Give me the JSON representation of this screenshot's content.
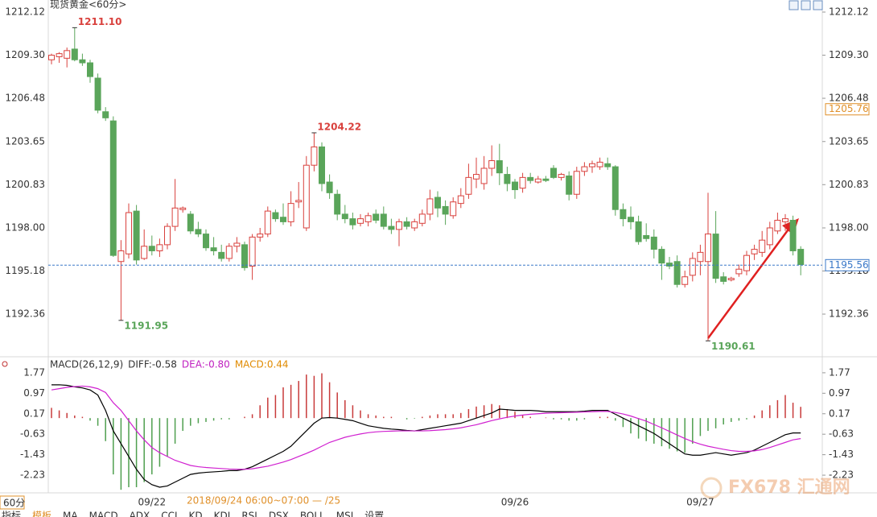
{
  "chart_data": [
    {
      "type": "candlestick",
      "title": "现货黄金<60分>",
      "categories": [
        null,
        null,
        null,
        null,
        null,
        null,
        null,
        null,
        null,
        null,
        null,
        null,
        null,
        "09/22",
        null,
        null,
        null,
        null,
        null,
        null,
        null,
        null,
        null,
        null,
        null,
        null,
        null,
        null,
        null,
        null,
        null,
        null,
        null,
        null,
        null,
        null,
        null,
        null,
        null,
        null,
        null,
        null,
        null,
        null,
        null,
        null,
        null,
        null,
        null,
        null,
        null,
        null,
        null,
        null,
        null,
        null,
        null,
        null,
        null,
        null,
        "09/26",
        null,
        null,
        null,
        null,
        null,
        null,
        null,
        null,
        null,
        null,
        null,
        null,
        null,
        null,
        null,
        null,
        null,
        null,
        null,
        null,
        null,
        null,
        null,
        "09/27",
        null,
        null,
        null,
        null,
        null,
        null,
        null,
        null,
        null,
        null,
        null,
        null,
        null
      ],
      "ohlc": [
        [
          1209.0,
          1209.4,
          1208.7,
          1209.3
        ],
        [
          1209.2,
          1209.5,
          1208.8,
          1209.4
        ],
        [
          1209.1,
          1209.8,
          1208.5,
          1209.6
        ],
        [
          1209.7,
          1211.1,
          1208.9,
          1209.0
        ],
        [
          1209.0,
          1209.4,
          1208.6,
          1208.8
        ],
        [
          1208.8,
          1209.0,
          1207.5,
          1207.9
        ],
        [
          1207.8,
          1208.1,
          1205.5,
          1205.7
        ],
        [
          1205.6,
          1205.9,
          1205.0,
          1205.2
        ],
        [
          1205.0,
          1205.3,
          1196.1,
          1196.2
        ],
        [
          1195.8,
          1197.2,
          1191.95,
          1196.5
        ],
        [
          1196.3,
          1199.6,
          1196.0,
          1199.0
        ],
        [
          1199.1,
          1199.5,
          1195.6,
          1195.9
        ],
        [
          1196.0,
          1197.9,
          1195.9,
          1196.8
        ],
        [
          1196.8,
          1197.5,
          1196.2,
          1196.5
        ],
        [
          1196.5,
          1197.3,
          1196.1,
          1196.9
        ],
        [
          1196.9,
          1198.3,
          1196.6,
          1198.1
        ],
        [
          1198.1,
          1201.2,
          1197.8,
          1199.3
        ],
        [
          1199.2,
          1199.4,
          1199.0,
          1199.3
        ],
        [
          1198.9,
          1199.1,
          1197.6,
          1197.8
        ],
        [
          1197.9,
          1198.4,
          1197.4,
          1197.6
        ],
        [
          1197.6,
          1197.9,
          1196.5,
          1196.7
        ],
        [
          1196.7,
          1197.4,
          1196.2,
          1196.5
        ],
        [
          1196.4,
          1196.9,
          1195.8,
          1196.0
        ],
        [
          1196.0,
          1197.0,
          1195.8,
          1196.8
        ],
        [
          1196.8,
          1197.4,
          1196.4,
          1197.0
        ],
        [
          1196.9,
          1197.1,
          1195.2,
          1195.4
        ],
        [
          1195.5,
          1197.6,
          1194.6,
          1197.4
        ],
        [
          1197.4,
          1198.0,
          1197.1,
          1197.6
        ],
        [
          1197.6,
          1199.4,
          1197.4,
          1199.1
        ],
        [
          1199.0,
          1199.2,
          1198.4,
          1198.6
        ],
        [
          1198.7,
          1199.6,
          1198.2,
          1198.4
        ],
        [
          1198.4,
          1200.4,
          1198.1,
          1199.6
        ],
        [
          1199.7,
          1201.0,
          1199.3,
          1199.8
        ],
        [
          1198.0,
          1202.7,
          1197.8,
          1202.1
        ],
        [
          1202.1,
          1204.22,
          1201.7,
          1203.3
        ],
        [
          1203.3,
          1203.6,
          1200.4,
          1200.9
        ],
        [
          1201.0,
          1201.5,
          1199.9,
          1200.3
        ],
        [
          1200.2,
          1200.5,
          1198.5,
          1198.9
        ],
        [
          1198.9,
          1199.5,
          1198.3,
          1198.6
        ],
        [
          1198.6,
          1199.0,
          1197.9,
          1198.2
        ],
        [
          1198.3,
          1198.9,
          1198.1,
          1198.6
        ],
        [
          1198.4,
          1199.0,
          1198.1,
          1198.8
        ],
        [
          1198.9,
          1199.2,
          1198.3,
          1198.5
        ],
        [
          1198.9,
          1199.4,
          1197.9,
          1198.1
        ],
        [
          1198.1,
          1198.6,
          1197.6,
          1197.9
        ],
        [
          1197.9,
          1198.6,
          1196.8,
          1198.4
        ],
        [
          1198.4,
          1198.7,
          1197.9,
          1198.1
        ],
        [
          1198.0,
          1198.6,
          1197.8,
          1198.4
        ],
        [
          1198.3,
          1199.2,
          1198.1,
          1198.9
        ],
        [
          1198.9,
          1200.5,
          1198.5,
          1199.9
        ],
        [
          1200.0,
          1200.4,
          1198.7,
          1199.3
        ],
        [
          1199.4,
          1199.8,
          1198.2,
          1198.9
        ],
        [
          1198.8,
          1200.0,
          1198.6,
          1199.7
        ],
        [
          1199.6,
          1200.6,
          1199.3,
          1200.1
        ],
        [
          1200.2,
          1202.2,
          1199.9,
          1201.3
        ],
        [
          1201.2,
          1202.6,
          1200.6,
          1201.5
        ],
        [
          1200.9,
          1202.7,
          1200.5,
          1201.9
        ],
        [
          1201.9,
          1203.4,
          1201.4,
          1202.4
        ],
        [
          1202.4,
          1203.5,
          1200.8,
          1201.6
        ],
        [
          1201.5,
          1202.0,
          1200.4,
          1200.9
        ],
        [
          1201.0,
          1201.2,
          1199.9,
          1200.5
        ],
        [
          1200.6,
          1201.6,
          1200.3,
          1201.3
        ],
        [
          1201.3,
          1201.6,
          1200.9,
          1201.1
        ],
        [
          1201.0,
          1201.4,
          1200.9,
          1201.2
        ],
        [
          1201.2,
          1201.4,
          1201.0,
          1201.1
        ],
        [
          1201.9,
          1202.1,
          1201.2,
          1201.3
        ],
        [
          1201.3,
          1201.6,
          1201.1,
          1201.5
        ],
        [
          1201.4,
          1201.7,
          1199.8,
          1200.2
        ],
        [
          1200.2,
          1202.0,
          1199.9,
          1201.7
        ],
        [
          1201.7,
          1202.3,
          1201.4,
          1202.0
        ],
        [
          1202.0,
          1202.4,
          1201.6,
          1202.2
        ],
        [
          1202.0,
          1202.6,
          1201.8,
          1202.3
        ],
        [
          1202.2,
          1202.6,
          1201.8,
          1202.0
        ],
        [
          1202.0,
          1202.1,
          1198.8,
          1199.2
        ],
        [
          1199.2,
          1199.6,
          1198.1,
          1198.6
        ],
        [
          1198.7,
          1199.4,
          1197.9,
          1198.4
        ],
        [
          1198.4,
          1198.8,
          1196.9,
          1197.1
        ],
        [
          1197.5,
          1198.3,
          1197.1,
          1197.3
        ],
        [
          1197.4,
          1197.9,
          1196.0,
          1196.6
        ],
        [
          1196.6,
          1196.8,
          1194.6,
          1195.7
        ],
        [
          1195.7,
          1196.1,
          1195.3,
          1195.5
        ],
        [
          1195.8,
          1196.2,
          1194.1,
          1194.3
        ],
        [
          1194.3,
          1195.2,
          1194.1,
          1194.8
        ],
        [
          1194.9,
          1196.4,
          1194.5,
          1196.0
        ],
        [
          1195.8,
          1196.9,
          1194.9,
          1196.4
        ],
        [
          1195.8,
          1200.3,
          1190.61,
          1197.6
        ],
        [
          1197.6,
          1199.1,
          1194.4,
          1194.7
        ],
        [
          1194.8,
          1195.1,
          1194.3,
          1194.5
        ],
        [
          1194.6,
          1194.8,
          1194.5,
          1194.7
        ],
        [
          1195.0,
          1195.6,
          1194.8,
          1195.3
        ],
        [
          1195.2,
          1196.5,
          1194.9,
          1196.2
        ],
        [
          1196.3,
          1196.9,
          1195.9,
          1196.6
        ],
        [
          1196.4,
          1197.8,
          1196.1,
          1197.2
        ],
        [
          1196.9,
          1198.4,
          1196.6,
          1198.0
        ],
        [
          1197.8,
          1199.0,
          1197.6,
          1198.5
        ],
        [
          1198.4,
          1198.9,
          1197.8,
          1198.6
        ],
        [
          1198.5,
          1198.8,
          1196.2,
          1196.5
        ],
        [
          1196.6,
          1196.8,
          1194.9,
          1195.6
        ]
      ],
      "up_color": "#d9413d",
      "down_color": "#5aa55a",
      "ylim": [
        1189.57,
        1212.12
      ],
      "yticks": [
        1212.12,
        {
          "value": 1209.3,
          "label": "1209.30"
        },
        1206.48,
        1203.65,
        1200.83,
        {
          "value": 1198.0,
          "label": "1198.00"
        },
        1195.18,
        1192.36
      ],
      "current_price": 1195.56,
      "current_color": "#3a78c8",
      "crosshair_price": 1205.76,
      "crosshair_color": "#e0902a",
      "extremes": [
        {
          "candle": 3,
          "kind": "high",
          "value": 1211.1,
          "label": "1211.10"
        },
        {
          "candle": 34,
          "kind": "high",
          "value": 1204.22
        },
        {
          "candle": 9,
          "kind": "low",
          "value": 1191.95
        },
        {
          "candle": 85,
          "kind": "low",
          "value": 1190.61
        }
      ]
    },
    {
      "type": "macd",
      "legend": [
        {
          "label": "MACD(26,12,9)",
          "color": "#333333"
        },
        {
          "label": "DIFF:-0.58",
          "color": "#333333"
        },
        {
          "label": "DEA:-0.80",
          "color": "#c020c0"
        },
        {
          "label": "MACD:0.44",
          "color": "#e08a00"
        }
      ],
      "ylim": [
        -2.92,
        2.27
      ],
      "yticks": [
        1.77,
        0.97,
        0.17,
        -0.63,
        -1.43,
        -2.23
      ],
      "bars": {
        "up_color": "#c83a3a",
        "down_color": "#4f9f4f",
        "values": [
          0.4,
          0.3,
          0.2,
          0.1,
          0.05,
          -0.1,
          -0.3,
          -0.9,
          -2.2,
          -2.8,
          -2.7,
          -2.7,
          -2.5,
          -2.2,
          -1.9,
          -1.5,
          -1.0,
          -0.5,
          -0.3,
          -0.2,
          -0.15,
          -0.1,
          -0.05,
          -0.05,
          0.0,
          0.05,
          0.15,
          0.5,
          0.8,
          0.9,
          1.2,
          1.3,
          1.45,
          1.7,
          1.65,
          1.75,
          1.4,
          1.0,
          0.7,
          0.5,
          0.3,
          0.15,
          0.1,
          0.05,
          0.05,
          0.0,
          -0.05,
          -0.02,
          0.05,
          0.1,
          0.15,
          0.15,
          0.15,
          0.2,
          0.35,
          0.45,
          0.5,
          0.55,
          0.5,
          0.35,
          0.25,
          0.1,
          0.05,
          0.0,
          0.02,
          -0.05,
          -0.05,
          -0.1,
          -0.1,
          -0.05,
          0.0,
          0.05,
          0.05,
          -0.1,
          -0.35,
          -0.6,
          -0.8,
          -0.9,
          -1.0,
          -1.1,
          -1.2,
          -1.3,
          -1.35,
          -1.0,
          -0.7,
          -0.5,
          -0.4,
          -0.25,
          -0.15,
          -0.1,
          -0.05,
          0.1,
          0.3,
          0.5,
          0.7,
          0.9,
          0.6,
          0.44
        ]
      },
      "series": [
        {
          "color": "#000000",
          "values": [
            1.3,
            1.3,
            1.28,
            1.22,
            1.18,
            1.1,
            0.9,
            0.3,
            -0.5,
            -1.0,
            -1.5,
            -2.0,
            -2.4,
            -2.6,
            -2.7,
            -2.65,
            -2.5,
            -2.35,
            -2.2,
            -2.15,
            -2.12,
            -2.1,
            -2.08,
            -2.05,
            -2.05,
            -2.0,
            -1.9,
            -1.75,
            -1.6,
            -1.45,
            -1.3,
            -1.1,
            -0.8,
            -0.5,
            -0.2,
            0.0,
            0.02,
            0.0,
            -0.05,
            -0.1,
            -0.2,
            -0.3,
            -0.35,
            -0.4,
            -0.43,
            -0.45,
            -0.48,
            -0.5,
            -0.45,
            -0.4,
            -0.35,
            -0.3,
            -0.25,
            -0.2,
            -0.1,
            0.0,
            0.1,
            0.2,
            0.35,
            0.33,
            0.3,
            0.3,
            0.3,
            0.28,
            0.25,
            0.25,
            0.25,
            0.25,
            0.25,
            0.27,
            0.3,
            0.3,
            0.3,
            0.15,
            0.0,
            -0.15,
            -0.3,
            -0.45,
            -0.6,
            -0.8,
            -1.0,
            -1.2,
            -1.4,
            -1.45,
            -1.45,
            -1.4,
            -1.35,
            -1.4,
            -1.45,
            -1.4,
            -1.35,
            -1.25,
            -1.1,
            -0.95,
            -0.8,
            -0.65,
            -0.58,
            -0.58
          ]
        },
        {
          "color": "#d020d0",
          "values": [
            1.1,
            1.15,
            1.2,
            1.23,
            1.25,
            1.22,
            1.15,
            1.0,
            0.6,
            0.3,
            -0.1,
            -0.5,
            -0.85,
            -1.15,
            -1.35,
            -1.5,
            -1.65,
            -1.75,
            -1.85,
            -1.9,
            -1.93,
            -1.95,
            -1.97,
            -1.99,
            -2.0,
            -2.0,
            -1.98,
            -1.93,
            -1.88,
            -1.8,
            -1.72,
            -1.62,
            -1.5,
            -1.38,
            -1.25,
            -1.1,
            -0.95,
            -0.85,
            -0.75,
            -0.68,
            -0.62,
            -0.57,
            -0.54,
            -0.52,
            -0.51,
            -0.5,
            -0.5,
            -0.5,
            -0.5,
            -0.49,
            -0.47,
            -0.45,
            -0.42,
            -0.38,
            -0.32,
            -0.26,
            -0.18,
            -0.1,
            -0.03,
            0.03,
            0.08,
            0.12,
            0.15,
            0.17,
            0.19,
            0.2,
            0.21,
            0.22,
            0.23,
            0.24,
            0.25,
            0.26,
            0.26,
            0.22,
            0.16,
            0.08,
            -0.02,
            -0.12,
            -0.25,
            -0.38,
            -0.52,
            -0.66,
            -0.8,
            -0.92,
            -1.02,
            -1.1,
            -1.16,
            -1.22,
            -1.27,
            -1.3,
            -1.3,
            -1.28,
            -1.23,
            -1.15,
            -1.05,
            -0.95,
            -0.85,
            -0.8
          ]
        }
      ]
    }
  ],
  "toolbar": {
    "period": "60分",
    "status": "2018/09/24  06:00~07:00  — /25",
    "tabs": [
      "指标",
      "模板",
      "MA",
      "MACD",
      "ADX",
      "CCI",
      "KD",
      "KDJ",
      "RSI",
      "DSX",
      "BOLL",
      "MSI",
      "设置"
    ]
  },
  "watermark": "FX678 汇通网"
}
